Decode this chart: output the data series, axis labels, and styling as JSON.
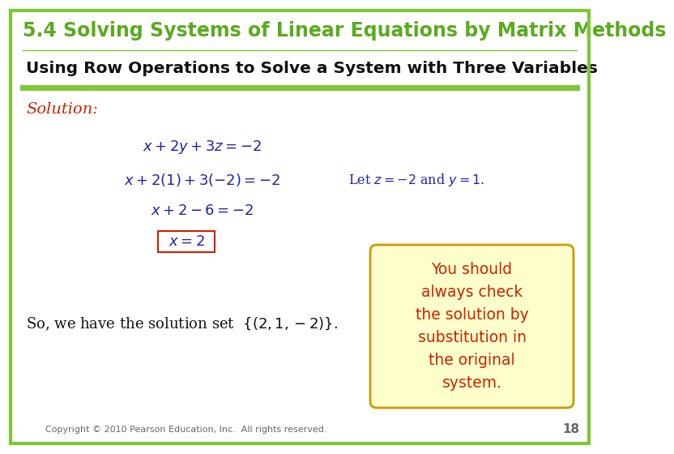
{
  "bg_color": "#ffffff",
  "outer_border_color": "#7dc832",
  "header_text": "5.4 Solving Systems of Linear Equations by Matrix Methods",
  "header_text_color": "#5aaa1e",
  "header_fontsize": 17,
  "subheader_text": "Using Row Operations to Solve a System with Three Variables",
  "subheader_text_color": "#111111",
  "subheader_fontsize": 14.5,
  "divider_color": "#7dc832",
  "solution_label": "Solution:",
  "solution_color": "#cc2200",
  "eq1": "$x + 2y + 3z = -2$",
  "eq2": "$x + 2(1) + 3(-2) = -2$",
  "eq3": "$x + 2 - 6 = -2$",
  "eq4": "$x = 2$",
  "let_text": "Let $z = -2$ and $y = 1.$",
  "let_color": "#2222aa",
  "eq_color": "#2222aa",
  "eq4_box_color": "#cc2200",
  "so_text": "So, we have the solution set  $\\{(2,1,-2)\\}.$",
  "so_color": "#111111",
  "note_text": "You should\nalways check\nthe solution by\nsubstitution in\nthe original\nsystem.",
  "note_bg": "#ffffcc",
  "note_border": "#cc9900",
  "note_text_color": "#cc2200",
  "footer_text": "Copyright © 2010 Pearson Education, Inc.  All rights reserved.",
  "footer_page": "18",
  "footer_color": "#666666"
}
